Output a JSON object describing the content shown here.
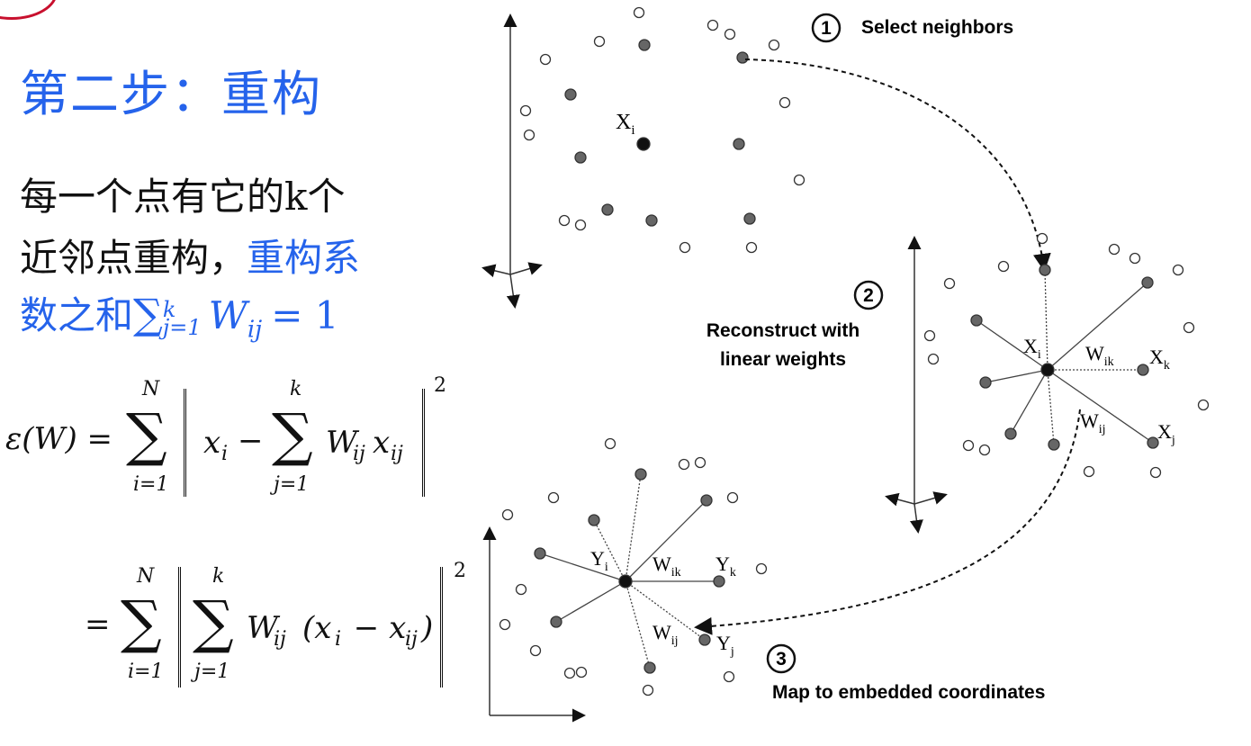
{
  "slide": {
    "title": "第二步：重构",
    "text_line1": "每一个点有它的k个",
    "text_line2a": "近邻点重构，",
    "text_line2b": "重构系",
    "text_line3a": "数之和",
    "text_line3_math": "∑",
    "text_line3_sup": "k",
    "text_line3_sub": "j=1",
    "text_line3_w": "W",
    "text_line3_wsub": "ij",
    "text_line3_eq": "= 1"
  },
  "equation": {
    "lhs": "ε(W) =",
    "sum_upper_N": "N",
    "sum_lower_i": "i=1",
    "sum_upper_k": "k",
    "sum_lower_j": "j=1",
    "term1_x": "x",
    "term1_xsub": "i",
    "minus": "−",
    "term1_w": "W",
    "term1_wsub": "ij",
    "term1_x2": "x",
    "term1_x2sub": "ij",
    "power": "2",
    "eq2": "=",
    "term2_w": "W",
    "term2_wsub": "ij",
    "term2_paren": "(x",
    "term2_psub_i": "i",
    "term2_minus": " − x",
    "term2_psub_ij": "ij",
    "term2_close": ")"
  },
  "diagram": {
    "step1_num": "1",
    "step1_label": "Select neighbors",
    "step2_num": "2",
    "step2_label_line1": "Reconstruct with",
    "step2_label_line2": "linear weights",
    "step3_num": "3",
    "step3_label": "Map to embedded coordinates",
    "x_i": "X",
    "x_i_sub": "i",
    "x_k": "X",
    "x_k_sub": "k",
    "x_j": "X",
    "x_j_sub": "j",
    "w_ik": "W",
    "w_ik_sub": "ik",
    "w_ij": "W",
    "w_ij_sub": "ij",
    "y_i": "Y",
    "y_i_sub": "i",
    "y_k": "Y",
    "y_k_sub": "k",
    "y_j": "Y",
    "y_j_sub": "j"
  },
  "colors": {
    "accent": "#2563eb",
    "text": "#111111",
    "logo_border": "#c8102e",
    "filled_point": "#666666",
    "hollow_point": "#ffffff"
  }
}
